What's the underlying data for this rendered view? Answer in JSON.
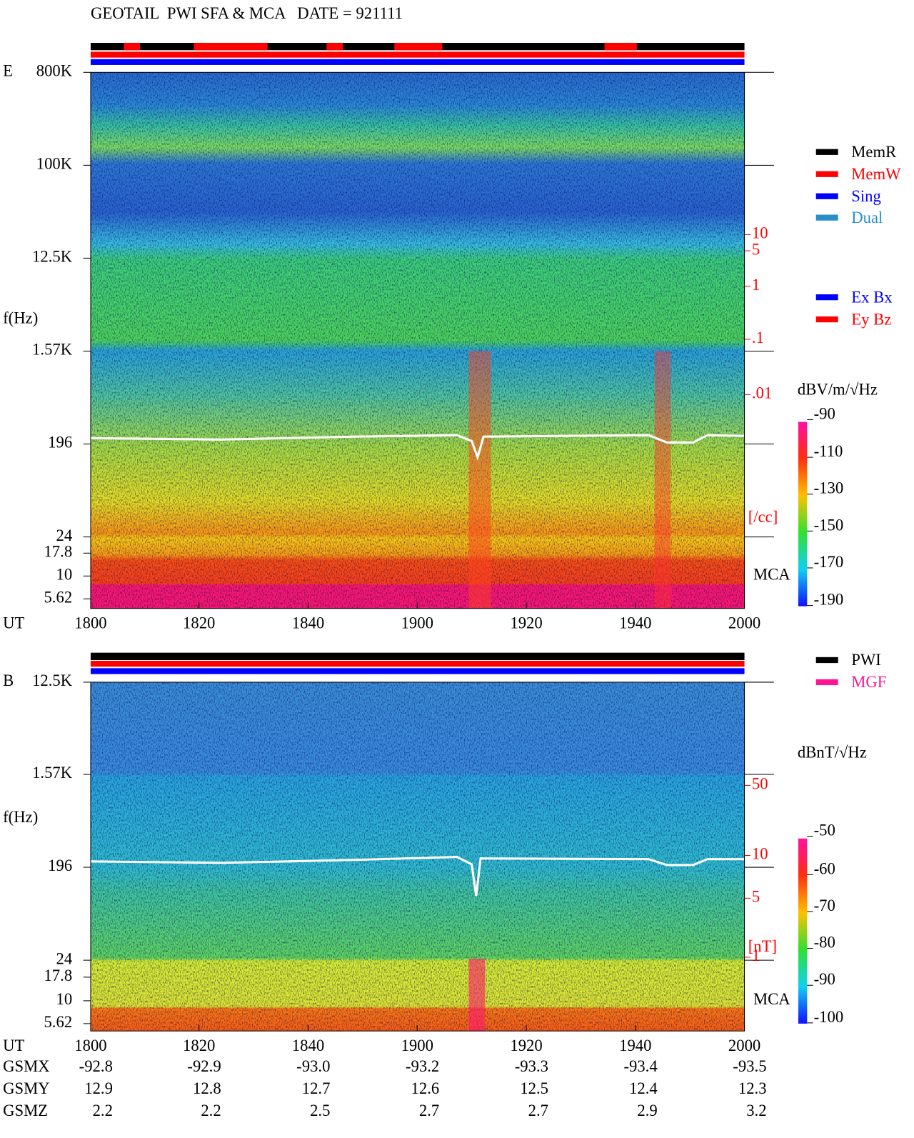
{
  "title": "GEOTAIL  PWI SFA & MCA   DATE = 921111",
  "panels": [
    {
      "label": "E",
      "y_axis_label": "f(Hz)",
      "freq_ticks": [
        "800K",
        "100K",
        "12.5K",
        "1.57K",
        "196",
        "24",
        "17.8",
        "10",
        "5.62"
      ],
      "time_label": "UT",
      "time_ticks": [
        "1800",
        "1820",
        "1840",
        "1900",
        "1920",
        "1940",
        "2000"
      ],
      "density_ticks": [
        "10",
        "5",
        "1",
        ".1",
        ".01"
      ],
      "density_unit": "[/cc]",
      "mca_label": "MCA",
      "legend": [
        {
          "name": "MemR",
          "color": "#000000"
        },
        {
          "name": "MemW",
          "color": "#ff0000"
        },
        {
          "name": "Sing",
          "color": "#0000ff"
        },
        {
          "name": "Dual",
          "color": "#2a8fc8"
        },
        {
          "name": "Ex Bx",
          "color": "#0000ff"
        },
        {
          "name": "Ey Bz",
          "color": "#ff0000"
        }
      ],
      "colorbar_unit": "dBV/m/√Hz",
      "colorbar_ticks": [
        "-90",
        "-110",
        "-130",
        "-150",
        "-170",
        "-190"
      ]
    },
    {
      "label": "B",
      "y_axis_label": "f(Hz)",
      "freq_ticks": [
        "12.5K",
        "1.57K",
        "196",
        "24",
        "17.8",
        "10",
        "5.62"
      ],
      "time_label": "UT",
      "time_ticks": [
        "1800",
        "1820",
        "1840",
        "1900",
        "1920",
        "1940",
        "2000"
      ],
      "density_ticks": [
        "50",
        "10",
        "5",
        "1"
      ],
      "density_unit": "[nT]",
      "mca_label": "MCA",
      "legend": [
        {
          "name": "PWI",
          "color": "#000000"
        },
        {
          "name": "MGF",
          "color": "#ff1493"
        }
      ],
      "colorbar_unit": "dBnT/√Hz",
      "colorbar_ticks": [
        "-50",
        "-60",
        "-70",
        "-80",
        "-90",
        "-100"
      ]
    }
  ],
  "orbit": {
    "rows": [
      {
        "label": "GSMX",
        "values": [
          "-92.8",
          "-92.9",
          "-93.0",
          "-93.2",
          "-93.3",
          "-93.4",
          "-93.5"
        ]
      },
      {
        "label": "GSMY",
        "values": [
          "12.9",
          "12.8",
          "12.7",
          "12.6",
          "12.5",
          "12.4",
          "12.3"
        ]
      },
      {
        "label": "GSMZ",
        "values": [
          "2.2",
          "2.2",
          "2.5",
          "2.7",
          "2.7",
          "2.9",
          "3.2"
        ]
      }
    ]
  }
}
